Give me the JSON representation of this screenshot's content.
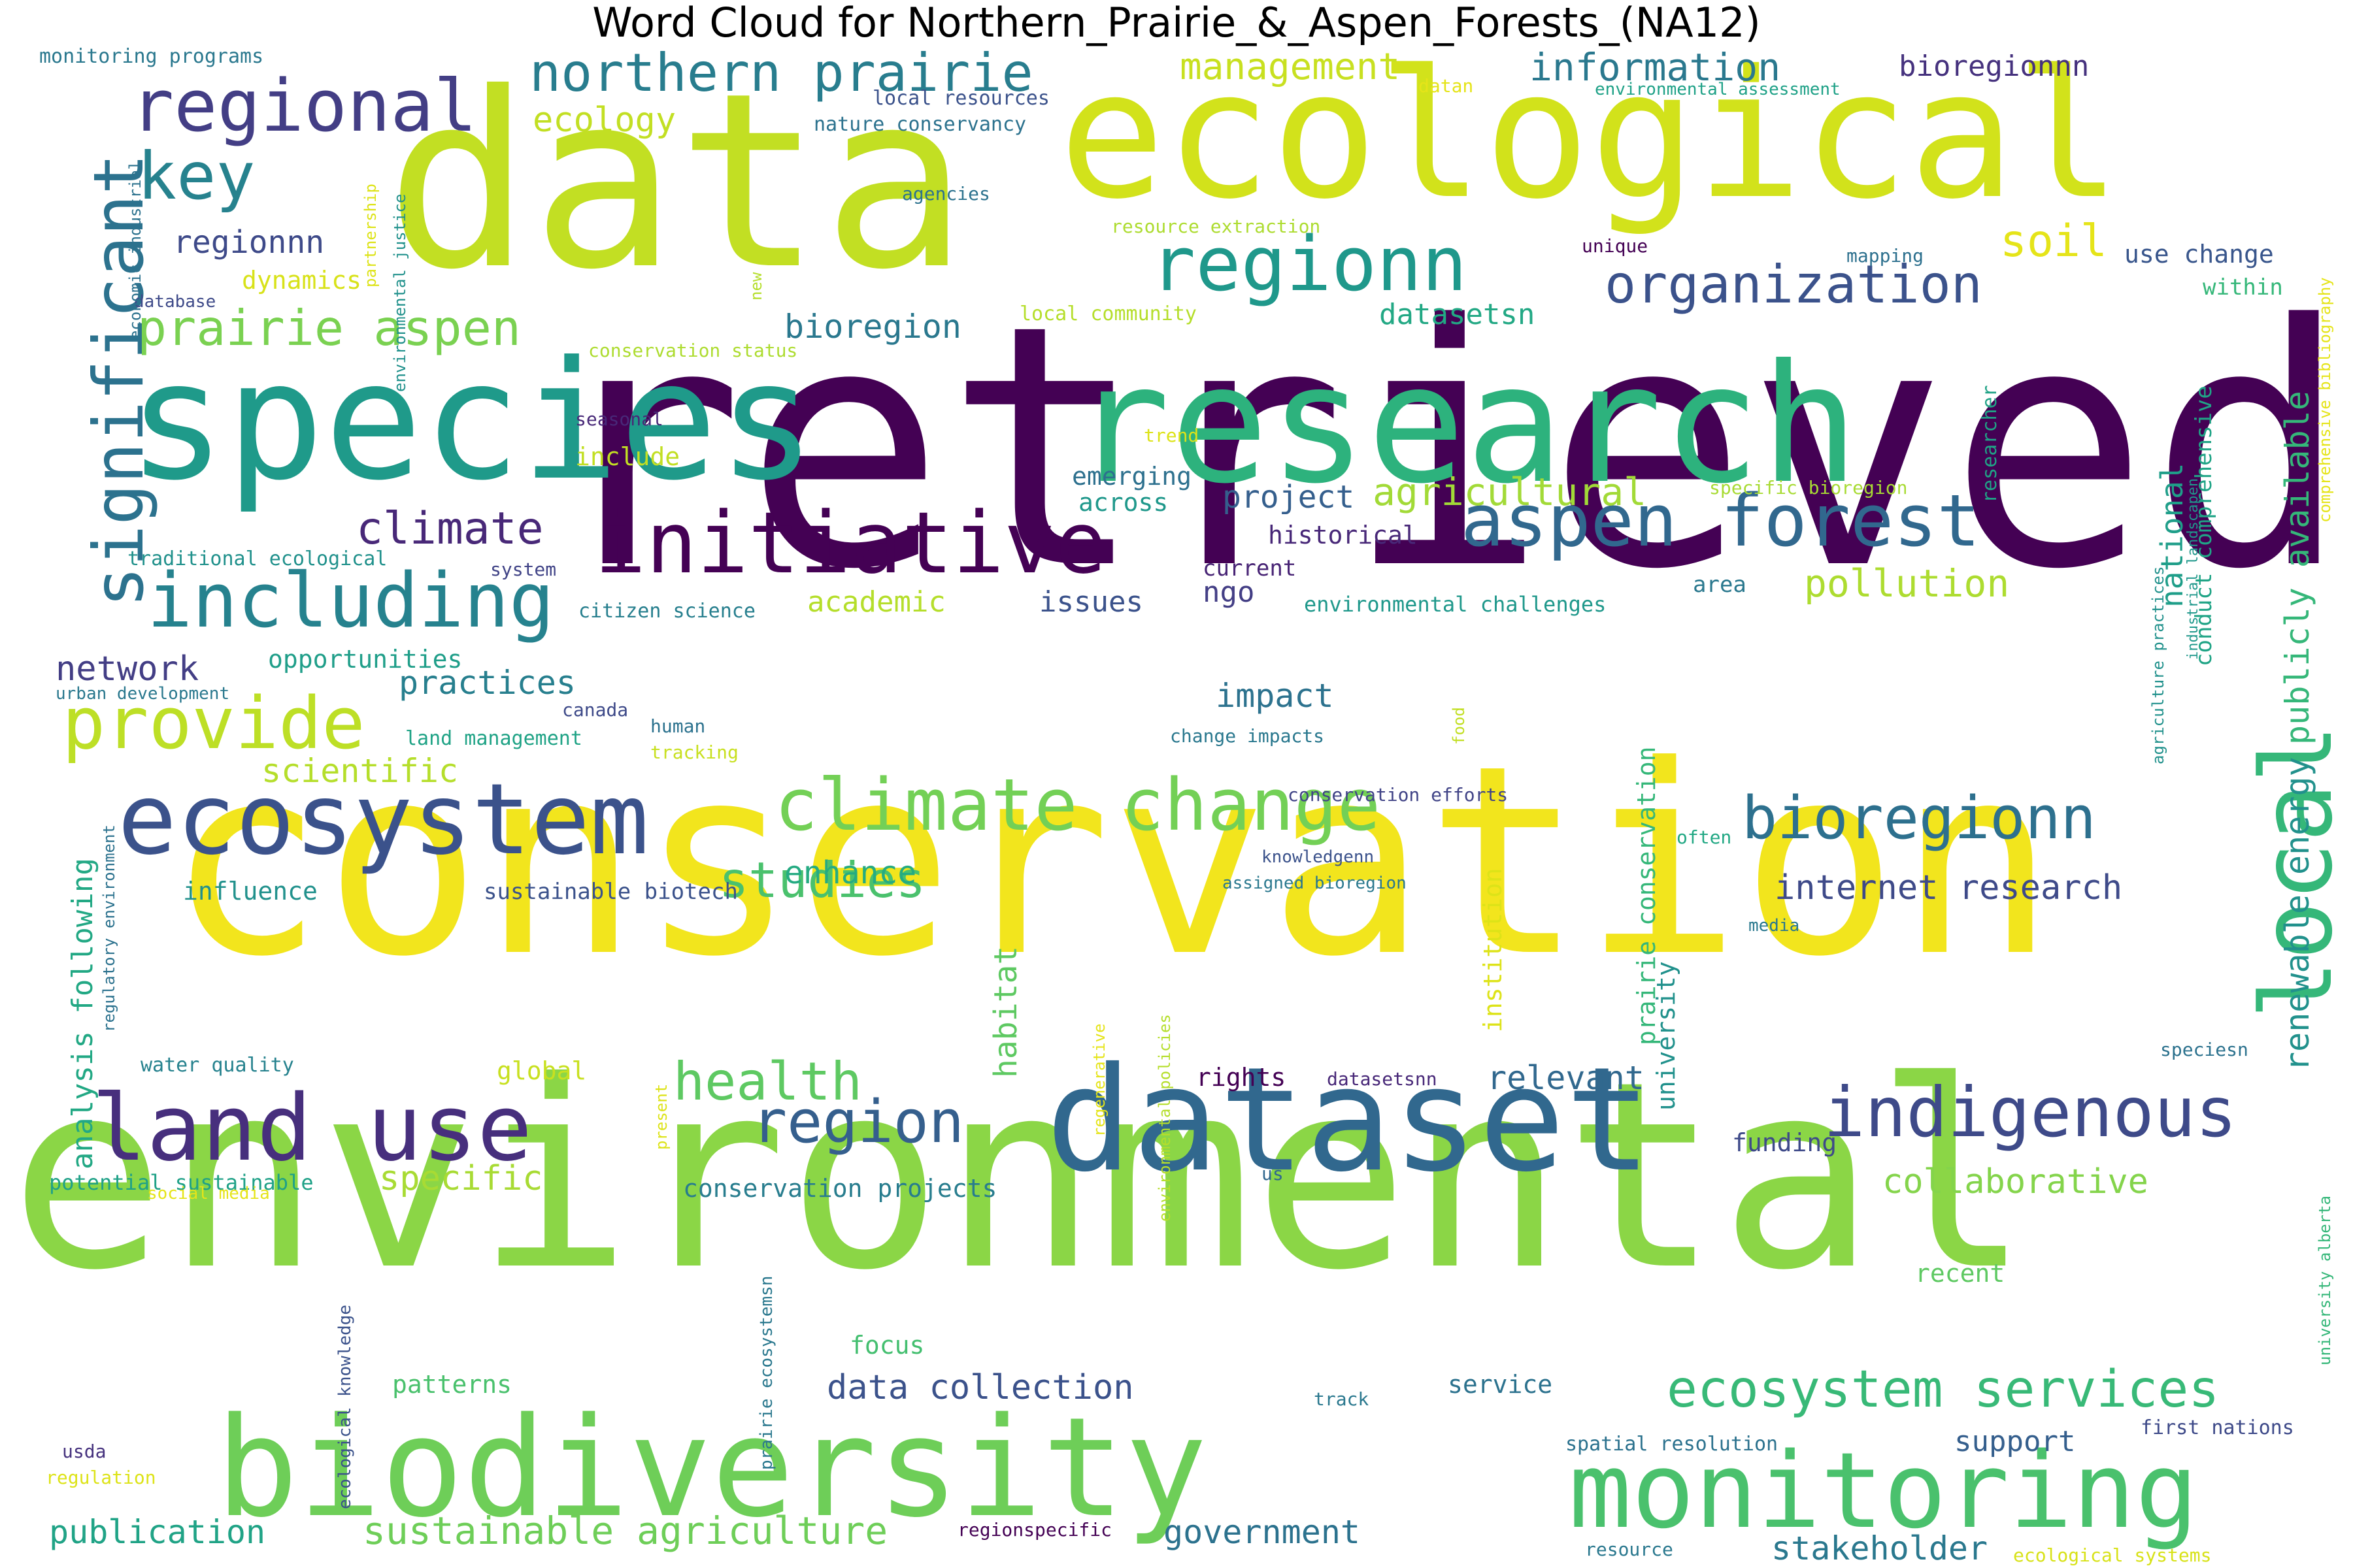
{
  "title": "Word Cloud for Northern_Prairie_&_Aspen_Forests_(NA12)",
  "colors": {
    "background": "#ffffff",
    "title": "#000000"
  },
  "words": [
    {
      "text": "retrieved",
      "color": "#440154"
    },
    {
      "text": "conservation",
      "color": "#f2e51d"
    },
    {
      "text": "environmental",
      "color": "#8bd646"
    },
    {
      "text": "data",
      "color": "#c2df23"
    },
    {
      "text": "ecological",
      "color": "#d2e21b"
    },
    {
      "text": "research",
      "color": "#2db27d"
    },
    {
      "text": "species",
      "color": "#1f9a8a"
    },
    {
      "text": "biodiversity",
      "color": "#6ece58"
    },
    {
      "text": "dataset",
      "color": "#31688e"
    },
    {
      "text": "monitoring",
      "color": "#4ac16d"
    },
    {
      "text": "ecosystem",
      "color": "#3b528b"
    },
    {
      "text": "climate change",
      "color": "#73d056"
    },
    {
      "text": "land use",
      "color": "#472f7d"
    },
    {
      "text": "local",
      "color": "#35b779"
    },
    {
      "text": "initiative",
      "color": "#440154"
    },
    {
      "text": "aspen forest",
      "color": "#31688e"
    },
    {
      "text": "regionn",
      "color": "#1f988b"
    },
    {
      "text": "including",
      "color": "#26828e"
    },
    {
      "text": "significant",
      "color": "#2c728e"
    },
    {
      "text": "regional",
      "color": "#433e85"
    },
    {
      "text": "provide",
      "color": "#bddf26"
    },
    {
      "text": "indigenous",
      "color": "#3e4a89"
    },
    {
      "text": "bioregionn",
      "color": "#2d708e"
    },
    {
      "text": "ecosystem services",
      "color": "#38b977"
    },
    {
      "text": "region",
      "color": "#355f8d"
    },
    {
      "text": "northern prairie",
      "color": "#287d8e"
    },
    {
      "text": "organization",
      "color": "#3b528b"
    },
    {
      "text": "key",
      "color": "#26828e"
    },
    {
      "text": "prairie aspen",
      "color": "#7ad151"
    },
    {
      "text": "health",
      "color": "#5ec962"
    },
    {
      "text": "studies",
      "color": "#4ac16d"
    },
    {
      "text": "climate",
      "color": "#482878"
    },
    {
      "text": "soil",
      "color": "#e5e419"
    },
    {
      "text": "sustainable agriculture",
      "color": "#6ece58"
    },
    {
      "text": "agricultural",
      "color": "#a2da37"
    },
    {
      "text": "pollution",
      "color": "#addc30"
    },
    {
      "text": "information",
      "color": "#2a788e"
    },
    {
      "text": "management",
      "color": "#c8e020"
    },
    {
      "text": "internet research",
      "color": "#3e4a89"
    },
    {
      "text": "publicly available",
      "color": "#35b779"
    },
    {
      "text": "renewable energy",
      "color": "#21918c"
    },
    {
      "text": "data collection",
      "color": "#3b528b"
    },
    {
      "text": "collaborative",
      "color": "#84d44b"
    },
    {
      "text": "network",
      "color": "#433e85"
    },
    {
      "text": "relevant",
      "color": "#31688e"
    },
    {
      "text": "publication",
      "color": "#20a386"
    },
    {
      "text": "government",
      "color": "#2c728e"
    },
    {
      "text": "stakeholder",
      "color": "#2a788e"
    },
    {
      "text": "practices",
      "color": "#277f8e"
    },
    {
      "text": "scientific",
      "color": "#b5de2b"
    },
    {
      "text": "enhance",
      "color": "#25ab82"
    },
    {
      "text": "bioregion",
      "color": "#2a788e"
    },
    {
      "text": "habitat",
      "color": "#5ec962"
    },
    {
      "text": "specific",
      "color": "#a8db34"
    },
    {
      "text": "impact",
      "color": "#2c728e"
    },
    {
      "text": "national",
      "color": "#1f9e89"
    },
    {
      "text": "ecology",
      "color": "#c2df23"
    },
    {
      "text": "academic",
      "color": "#b5de2b"
    },
    {
      "text": "project",
      "color": "#355f8d"
    },
    {
      "text": "regionnn",
      "color": "#3e4a89"
    },
    {
      "text": "datasetsn",
      "color": "#22a884"
    },
    {
      "text": "bioregionnn",
      "color": "#46327e"
    },
    {
      "text": "analysis following",
      "color": "#22a884"
    },
    {
      "text": "issues",
      "color": "#3b528b"
    },
    {
      "text": "support",
      "color": "#355f8d"
    },
    {
      "text": "ngo",
      "color": "#433e85"
    },
    {
      "text": "use change",
      "color": "#39568c"
    },
    {
      "text": "focus",
      "color": "#44bf70"
    },
    {
      "text": "funding",
      "color": "#3e4a89"
    },
    {
      "text": "emerging",
      "color": "#2d708e"
    },
    {
      "text": "across",
      "color": "#1f988b"
    },
    {
      "text": "historical",
      "color": "#482878"
    },
    {
      "text": "current",
      "color": "#482475"
    },
    {
      "text": "opportunities",
      "color": "#1f9e89"
    },
    {
      "text": "influence",
      "color": "#21918c"
    },
    {
      "text": "patterns",
      "color": "#4ac16d"
    },
    {
      "text": "dynamics",
      "color": "#d8e219"
    },
    {
      "text": "global",
      "color": "#c8e020"
    },
    {
      "text": "rights",
      "color": "#440154"
    },
    {
      "text": "recent",
      "color": "#5ec962"
    },
    {
      "text": "service",
      "color": "#2c728e"
    },
    {
      "text": "university",
      "color": "#21918c"
    },
    {
      "text": "prairie conservation",
      "color": "#35b779"
    },
    {
      "text": "institution",
      "color": "#dde318"
    },
    {
      "text": "conservation projects",
      "color": "#287d8e"
    },
    {
      "text": "potential sustainable",
      "color": "#1fa187"
    },
    {
      "text": "sustainable biotech",
      "color": "#3b528b"
    },
    {
      "text": "conduct comprehensive",
      "color": "#20a486"
    },
    {
      "text": "area",
      "color": "#2a788e"
    },
    {
      "text": "researcher",
      "color": "#20a386"
    },
    {
      "text": "within",
      "color": "#35b779"
    },
    {
      "text": "environmental challenges",
      "color": "#1f988b"
    },
    {
      "text": "citizen science",
      "color": "#277f8e"
    },
    {
      "text": "traditional ecological",
      "color": "#21918c"
    },
    {
      "text": "monitoring programs",
      "color": "#2a788e"
    },
    {
      "text": "local resources",
      "color": "#3b528b"
    },
    {
      "text": "nature conservancy",
      "color": "#2c728e"
    },
    {
      "text": "environmental assessment",
      "color": "#1fa187"
    },
    {
      "text": "datan",
      "color": "#e5e419"
    },
    {
      "text": "agencies",
      "color": "#2c728e"
    },
    {
      "text": "resource extraction",
      "color": "#addc30"
    },
    {
      "text": "local community",
      "color": "#b5de2b"
    },
    {
      "text": "conservation status",
      "color": "#addc30"
    },
    {
      "text": "unique",
      "color": "#440154"
    },
    {
      "text": "mapping",
      "color": "#2d708e"
    },
    {
      "text": "specific bioregion",
      "color": "#a8db34"
    },
    {
      "text": "trend",
      "color": "#dde318"
    },
    {
      "text": "include",
      "color": "#c2df23"
    },
    {
      "text": "seasonal",
      "color": "#482878"
    },
    {
      "text": "system",
      "color": "#414487"
    },
    {
      "text": "urban development",
      "color": "#2a788e"
    },
    {
      "text": "canada",
      "color": "#3e4a89"
    },
    {
      "text": "land management",
      "color": "#20a386"
    },
    {
      "text": "human",
      "color": "#2c728e"
    },
    {
      "text": "tracking",
      "color": "#c8e020"
    },
    {
      "text": "change impacts",
      "color": "#2a788e"
    },
    {
      "text": "conservation efforts",
      "color": "#414487"
    },
    {
      "text": "often",
      "color": "#22a884"
    },
    {
      "text": "knowledgenn",
      "color": "#3b528b"
    },
    {
      "text": "assigned bioregion",
      "color": "#2a788e"
    },
    {
      "text": "media",
      "color": "#2a788e"
    },
    {
      "text": "speciesn",
      "color": "#2c728e"
    },
    {
      "text": "water quality",
      "color": "#26828e"
    },
    {
      "text": "datasetsnn",
      "color": "#482878"
    },
    {
      "text": "us",
      "color": "#31688e"
    },
    {
      "text": "social media",
      "color": "#e5e419"
    },
    {
      "text": "usda",
      "color": "#46327e"
    },
    {
      "text": "regulation",
      "color": "#dde318"
    },
    {
      "text": "regionspecific",
      "color": "#440154"
    },
    {
      "text": "resource",
      "color": "#2a788e"
    },
    {
      "text": "ecological systems",
      "color": "#d8e219"
    },
    {
      "text": "spatial resolution",
      "color": "#2c728e"
    },
    {
      "text": "first nations",
      "color": "#3e4a89"
    },
    {
      "text": "track",
      "color": "#2a788e"
    },
    {
      "text": "database",
      "color": "#3e4a89"
    },
    {
      "text": "economic industrial",
      "color": "#2c728e"
    },
    {
      "text": "partnership",
      "color": "#dde318"
    },
    {
      "text": "environmental justice",
      "color": "#21918c"
    },
    {
      "text": "new",
      "color": "#b5de2b"
    },
    {
      "text": "food",
      "color": "#c2df23"
    },
    {
      "text": "regenerative",
      "color": "#e5e419"
    },
    {
      "text": "environmental policies",
      "color": "#b5de2b"
    },
    {
      "text": "present",
      "color": "#dde318"
    },
    {
      "text": "prairie ecosystemsn",
      "color": "#2a788e"
    },
    {
      "text": "ecological knowledge",
      "color": "#3b528b"
    },
    {
      "text": "regulatory environment",
      "color": "#2c728e"
    },
    {
      "text": "agriculture practices",
      "color": "#21918c"
    },
    {
      "text": "industrial landscapen",
      "color": "#1f988b"
    },
    {
      "text": "comprehensive bibliography",
      "color": "#e5e419"
    },
    {
      "text": "university alberta",
      "color": "#35b779"
    }
  ]
}
